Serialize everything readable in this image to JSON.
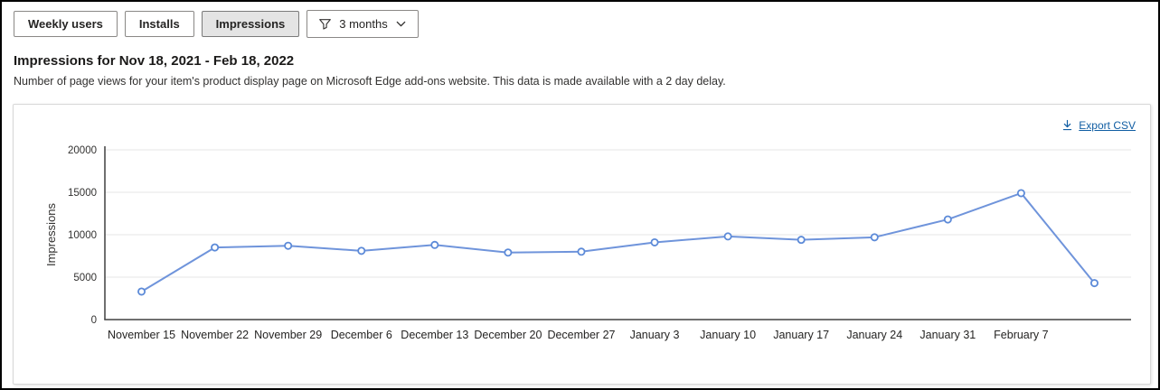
{
  "toolbar": {
    "buttons": [
      {
        "label": "Weekly users",
        "selected": false
      },
      {
        "label": "Installs",
        "selected": false
      },
      {
        "label": "Impressions",
        "selected": true
      }
    ],
    "filter": {
      "icon": "filter-funnel-icon",
      "value": "3 months",
      "chevron": "chevron-down-icon"
    }
  },
  "header": {
    "title": "Impressions for Nov 18, 2021 - Feb 18, 2022",
    "description": "Number of page views for your item's product display page on Microsoft Edge add-ons website. This data is made available with a 2 day delay."
  },
  "chart_card": {
    "export_label": "Export CSV",
    "export_icon": "download-icon"
  },
  "chart_data": {
    "type": "line",
    "title": "Impressions for Nov 18, 2021 - Feb 18, 2022",
    "xlabel": "",
    "ylabel": "Impressions",
    "ylim": [
      0,
      20000
    ],
    "yticks": [
      0,
      5000,
      10000,
      15000,
      20000
    ],
    "grid": true,
    "legend_position": "none",
    "categories": [
      "November 15",
      "November 22",
      "November 29",
      "December 6",
      "December 13",
      "December 20",
      "December 27",
      "January 3",
      "January 10",
      "January 17",
      "January 24",
      "January 31",
      "February 7",
      ""
    ],
    "values": [
      3300,
      8500,
      8700,
      8100,
      8800,
      7900,
      8000,
      9100,
      9800,
      9400,
      9700,
      11800,
      14900,
      4300
    ],
    "line_color": "#6f94db",
    "marker_color": "#5c8ad8",
    "marker_style": "open-circle",
    "gridline_color": "#e6e6e6",
    "axis_color": "#404040"
  }
}
